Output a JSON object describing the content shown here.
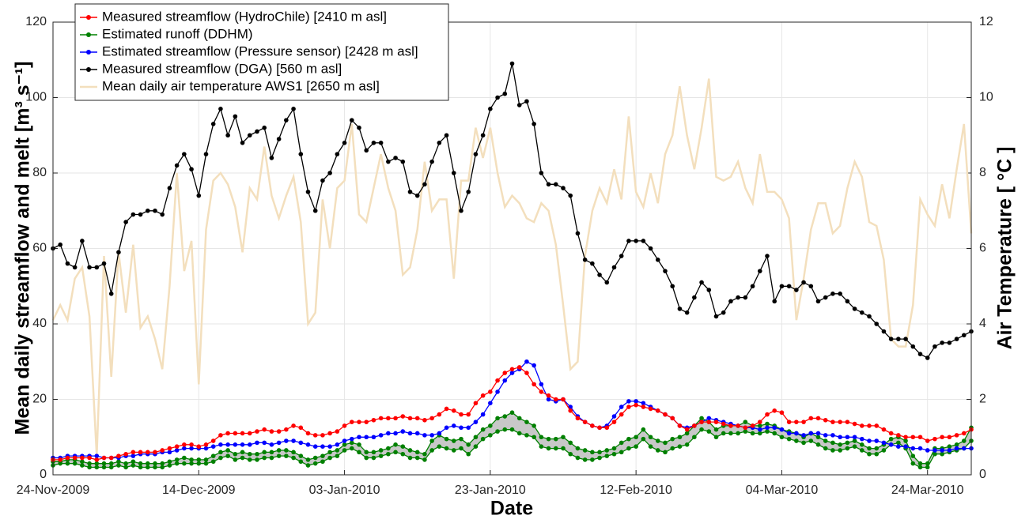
{
  "chart_data": {
    "type": "line",
    "xlabel": "Date",
    "ylabel": "Mean daily streamflow and melt [m³ s⁻¹]",
    "y2label": "Air Temperature [ °C ]",
    "xlim": [
      "2009-11-24",
      "2010-03-30"
    ],
    "xticks": [
      {
        "value": "2009-11-24",
        "label": "24-Nov-2009"
      },
      {
        "value": "2009-12-14",
        "label": "14-Dec-2009"
      },
      {
        "value": "2010-01-03",
        "label": "03-Jan-2010"
      },
      {
        "value": "2010-01-23",
        "label": "23-Jan-2010"
      },
      {
        "value": "2010-02-12",
        "label": "12-Feb-2010"
      },
      {
        "value": "2010-03-04",
        "label": "04-Mar-2010"
      },
      {
        "value": "2010-03-24",
        "label": "24-Mar-2010"
      }
    ],
    "ylim": [
      0,
      120
    ],
    "yticks": [
      0,
      20,
      40,
      60,
      80,
      100,
      120
    ],
    "y2lim": [
      0,
      12
    ],
    "y2ticks": [
      0,
      2,
      4,
      6,
      8,
      10,
      12
    ],
    "grid": true,
    "legend": "upper left",
    "x": [
      "2009-11-24",
      "2009-11-25",
      "2009-11-26",
      "2009-11-27",
      "2009-11-28",
      "2009-11-29",
      "2009-11-30",
      "2009-12-01",
      "2009-12-02",
      "2009-12-03",
      "2009-12-04",
      "2009-12-05",
      "2009-12-06",
      "2009-12-07",
      "2009-12-08",
      "2009-12-09",
      "2009-12-10",
      "2009-12-11",
      "2009-12-12",
      "2009-12-13",
      "2009-12-14",
      "2009-12-15",
      "2009-12-16",
      "2009-12-17",
      "2009-12-18",
      "2009-12-19",
      "2009-12-20",
      "2009-12-21",
      "2009-12-22",
      "2009-12-23",
      "2009-12-24",
      "2009-12-25",
      "2009-12-26",
      "2009-12-27",
      "2009-12-28",
      "2009-12-29",
      "2009-12-30",
      "2009-12-31",
      "2010-01-01",
      "2010-01-02",
      "2010-01-03",
      "2010-01-04",
      "2010-01-05",
      "2010-01-06",
      "2010-01-07",
      "2010-01-08",
      "2010-01-09",
      "2010-01-10",
      "2010-01-11",
      "2010-01-12",
      "2010-01-13",
      "2010-01-14",
      "2010-01-15",
      "2010-01-16",
      "2010-01-17",
      "2010-01-18",
      "2010-01-19",
      "2010-01-20",
      "2010-01-21",
      "2010-01-22",
      "2010-01-23",
      "2010-01-24",
      "2010-01-25",
      "2010-01-26",
      "2010-01-27",
      "2010-01-28",
      "2010-01-29",
      "2010-01-30",
      "2010-01-31",
      "2010-02-01",
      "2010-02-02",
      "2010-02-03",
      "2010-02-04",
      "2010-02-05",
      "2010-02-06",
      "2010-02-07",
      "2010-02-08",
      "2010-02-09",
      "2010-02-10",
      "2010-02-11",
      "2010-02-12",
      "2010-02-13",
      "2010-02-14",
      "2010-02-15",
      "2010-02-16",
      "2010-02-17",
      "2010-02-18",
      "2010-02-19",
      "2010-02-20",
      "2010-02-21",
      "2010-02-22",
      "2010-02-23",
      "2010-02-24",
      "2010-02-25",
      "2010-02-26",
      "2010-02-27",
      "2010-02-28",
      "2010-03-01",
      "2010-03-02",
      "2010-03-03",
      "2010-03-04",
      "2010-03-05",
      "2010-03-06",
      "2010-03-07",
      "2010-03-08",
      "2010-03-09",
      "2010-03-10",
      "2010-03-11",
      "2010-03-12",
      "2010-03-13",
      "2010-03-14",
      "2010-03-15",
      "2010-03-16",
      "2010-03-17",
      "2010-03-18",
      "2010-03-19",
      "2010-03-20",
      "2010-03-21",
      "2010-03-22",
      "2010-03-23",
      "2010-03-24",
      "2010-03-25",
      "2010-03-26",
      "2010-03-27",
      "2010-03-28",
      "2010-03-29",
      "2010-03-30"
    ],
    "series": [
      {
        "name": "Measured streamflow (HydroChile) [2410 m asl]",
        "color": "#ff0000",
        "values": [
          4,
          4,
          4.5,
          4.5,
          4.5,
          4.5,
          4,
          4.5,
          4.5,
          5,
          5.5,
          6,
          6,
          6,
          6,
          6.5,
          7,
          7.5,
          8,
          8,
          7.5,
          8,
          9,
          10.5,
          11,
          11,
          11,
          11,
          11.5,
          12,
          11.5,
          11.5,
          12,
          13,
          12.5,
          11,
          10.5,
          10.5,
          11,
          11.5,
          13,
          14,
          14,
          14,
          14.5,
          15,
          15,
          15,
          15.5,
          15,
          15,
          14.5,
          15,
          16,
          17.5,
          17,
          16,
          16,
          19,
          21,
          22,
          25,
          27,
          28,
          28.5,
          27,
          24,
          22,
          21,
          20,
          20,
          17,
          15,
          14,
          13,
          12.5,
          12.5,
          14,
          16,
          18,
          18.5,
          18,
          17.5,
          17,
          16,
          15,
          13,
          12,
          13,
          14,
          14,
          14,
          13.5,
          13,
          13,
          12.5,
          13,
          14,
          16,
          17,
          16.5,
          14,
          14,
          14,
          15,
          15,
          14.5,
          14,
          14,
          14,
          13.5,
          13,
          13,
          13,
          12,
          11,
          10.5,
          10,
          10,
          10,
          9,
          9.5,
          10,
          10,
          10.5,
          11,
          12
        ]
      },
      {
        "name": "Estimated runoff (DDHM)",
        "color": "#008000",
        "upper": [
          3.5,
          3.5,
          4,
          4,
          3.5,
          3,
          3,
          3,
          3,
          3.5,
          3,
          3.5,
          3,
          3,
          3,
          3,
          3.5,
          4,
          4.5,
          4,
          4,
          4,
          5,
          6,
          6.5,
          5.5,
          6,
          5.5,
          5.5,
          6,
          6,
          6.5,
          6.5,
          6,
          5,
          4,
          4.5,
          5,
          6,
          6.5,
          8,
          8.5,
          8,
          6,
          6,
          6.5,
          7,
          8,
          7.5,
          6.5,
          6,
          5.5,
          9,
          10.5,
          9.5,
          9,
          9.5,
          8,
          10,
          12,
          13,
          15,
          15.5,
          16.5,
          15,
          14,
          13,
          10,
          9.5,
          9.5,
          10,
          8.5,
          7,
          6.5,
          6,
          6,
          6.5,
          7,
          8.5,
          9.5,
          10,
          12,
          10,
          9,
          8.5,
          9.5,
          10,
          11,
          13,
          15,
          14,
          12,
          13,
          13,
          13,
          14,
          13,
          13,
          13.5,
          13,
          12,
          11.5,
          11,
          10,
          11,
          10,
          9,
          8.5,
          8,
          8.5,
          9,
          8,
          7,
          7,
          8,
          9.5,
          10,
          9,
          5,
          3,
          3,
          7,
          7,
          7.5,
          8,
          9,
          12.5
        ],
        "lower": [
          2.5,
          3,
          3,
          3,
          2.5,
          2,
          2,
          2,
          2,
          2.5,
          2,
          2.5,
          2,
          2,
          2,
          2,
          2.5,
          3,
          3,
          3,
          3,
          3,
          3.5,
          4.5,
          5,
          4,
          4.5,
          4,
          4,
          4.5,
          4.5,
          5,
          5,
          4.5,
          3.5,
          2.5,
          3,
          3.5,
          4.5,
          5,
          6.5,
          7,
          6,
          4.5,
          4.5,
          5,
          5.5,
          6,
          5.5,
          4.5,
          4.5,
          4,
          6.5,
          7.5,
          7,
          6.5,
          7,
          5.5,
          7.5,
          9.5,
          10.5,
          11.5,
          12,
          12,
          11,
          10.5,
          10,
          7.5,
          7,
          7,
          7,
          5.5,
          4.5,
          4,
          4,
          4.5,
          5,
          5.5,
          6,
          7,
          7.5,
          9.5,
          7.5,
          6.5,
          6,
          7,
          7.5,
          8,
          10,
          12,
          11.5,
          10,
          11,
          11,
          11,
          11.5,
          11,
          11,
          11.5,
          11,
          10,
          9.5,
          9,
          8.5,
          9,
          8,
          7,
          6.5,
          6.5,
          7,
          7.5,
          6.5,
          5.5,
          5.5,
          6.5,
          8,
          8.5,
          7,
          3,
          2,
          2,
          5.5,
          5.5,
          6,
          6.5,
          7,
          9
        ]
      },
      {
        "name": "Estimated streamflow (Pressure sensor) [2428 m asl]",
        "color": "#0000ff",
        "values": [
          4.5,
          4.5,
          5,
          5,
          5,
          5,
          5,
          4.5,
          4.5,
          4.5,
          5,
          5,
          5.5,
          5.5,
          5.5,
          6,
          6,
          6.5,
          7,
          7,
          7,
          7,
          7.5,
          8,
          8,
          8,
          8,
          8,
          8.5,
          8.5,
          8,
          8.5,
          9,
          9,
          8.5,
          8,
          7.5,
          7.5,
          7.5,
          8,
          9,
          9.5,
          10,
          10,
          10,
          10.5,
          11,
          11,
          11.5,
          11,
          11,
          10.5,
          10.5,
          11,
          12.5,
          13,
          12.5,
          12.5,
          14,
          16,
          19,
          22,
          25,
          27,
          28,
          30,
          29,
          24,
          20,
          19.5,
          20,
          18,
          15.5,
          14,
          13,
          12.5,
          13,
          15.5,
          18,
          19.5,
          19.5,
          19,
          18,
          17,
          16,
          15,
          13,
          12.5,
          13,
          14,
          15,
          14.5,
          14,
          13.5,
          13,
          12.5,
          12.5,
          12,
          12.5,
          12.5,
          12,
          11,
          11,
          10.5,
          11,
          11,
          10.5,
          10.5,
          10,
          10,
          10,
          9.5,
          9,
          9,
          8.5,
          8,
          7.5,
          7.5,
          7,
          7,
          6.5,
          6.5,
          6.5,
          6.5,
          7,
          7,
          7
        ]
      },
      {
        "name": "Measured streamflow (DGA) [560 m asl]",
        "color": "#000000",
        "values": [
          60,
          61,
          56,
          55,
          62,
          55,
          55,
          56,
          48,
          59,
          67,
          69,
          69,
          70,
          70,
          69,
          76,
          82,
          85,
          81,
          74,
          85,
          93,
          97,
          90,
          95,
          88,
          90,
          91,
          92,
          84,
          89,
          94,
          97,
          85,
          75,
          70,
          78,
          80,
          85,
          88,
          94,
          92,
          86,
          88,
          88,
          83,
          84,
          83,
          75,
          74,
          77,
          83,
          88,
          90,
          80,
          70,
          75,
          85,
          90,
          97,
          100,
          101,
          109,
          98,
          99,
          93,
          80,
          77,
          77,
          76,
          74,
          64,
          57,
          56,
          53,
          51,
          55,
          58,
          62,
          62,
          62,
          60,
          57,
          54,
          50,
          44,
          43,
          47,
          51,
          49,
          42,
          43,
          46,
          47,
          47,
          50,
          54,
          58,
          46,
          50,
          50,
          49,
          51,
          50,
          46,
          47,
          48,
          48,
          46,
          44,
          43,
          42,
          40,
          38,
          36,
          36,
          36,
          34,
          32,
          31,
          34,
          35,
          35,
          36,
          37,
          38
        ]
      },
      {
        "name": "Mean daily air temperature AWS1 [2650 m asl]",
        "color": "#f3dfbd",
        "axis": "y2",
        "values": [
          4.1,
          4.5,
          4.1,
          5.2,
          5.5,
          4.2,
          0.5,
          5.8,
          2.6,
          5.9,
          4.3,
          6.1,
          3.9,
          4.2,
          3.6,
          2.8,
          5.0,
          8.0,
          5.4,
          6.2,
          2.4,
          6.5,
          7.8,
          8.0,
          7.7,
          7.1,
          5.9,
          7.6,
          7.3,
          8.7,
          7.4,
          6.8,
          7.4,
          7.9,
          6.7,
          4.0,
          4.3,
          7.3,
          6.0,
          7.6,
          7.8,
          9.3,
          6.9,
          6.7,
          7.6,
          8.5,
          7.6,
          7.0,
          5.3,
          5.5,
          6.5,
          8.3,
          7.0,
          7.3,
          7.3,
          5.2,
          7.8,
          7.8,
          9.2,
          8.4,
          9.2,
          8.0,
          7.1,
          7.4,
          7.2,
          6.8,
          6.7,
          7.2,
          7.0,
          6.1,
          4.5,
          2.8,
          3.0,
          5.8,
          7.0,
          7.6,
          7.2,
          8.1,
          7.3,
          9.5,
          7.5,
          7.1,
          8.0,
          7.2,
          8.5,
          9.0,
          10.3,
          9.0,
          8.1,
          9.2,
          10.5,
          7.9,
          7.8,
          7.9,
          8.3,
          7.6,
          7.2,
          8.5,
          7.5,
          7.5,
          7.3,
          6.8,
          4.1,
          5.2,
          6.5,
          7.2,
          7.2,
          6.4,
          6.6,
          7.6,
          8.3,
          7.9,
          6.7,
          6.6,
          5.7,
          3.6,
          3.4,
          3.4,
          4.5,
          7.3,
          6.9,
          6.6,
          7.7,
          6.8,
          8.1,
          9.3,
          6.4
        ]
      }
    ]
  }
}
